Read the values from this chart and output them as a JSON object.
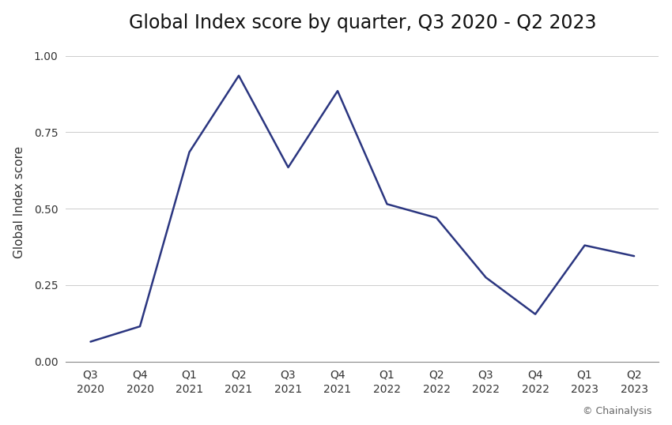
{
  "title": "Global Index score by quarter, Q3 2020 - Q2 2023",
  "ylabel": "Global Index score",
  "x_labels": [
    "Q3\n2020",
    "Q4\n2020",
    "Q1\n2021",
    "Q2\n2021",
    "Q3\n2021",
    "Q4\n2021",
    "Q1\n2022",
    "Q2\n2022",
    "Q3\n2022",
    "Q4\n2022",
    "Q1\n2023",
    "Q2\n2023"
  ],
  "values": [
    0.065,
    0.115,
    0.685,
    0.935,
    0.635,
    0.885,
    0.515,
    0.47,
    0.275,
    0.155,
    0.38,
    0.345
  ],
  "line_color": "#2b3680",
  "line_width": 1.8,
  "ylim": [
    0.0,
    1.04
  ],
  "yticks": [
    0.0,
    0.25,
    0.5,
    0.75,
    1.0
  ],
  "background_color": "#ffffff",
  "grid_color": "#cccccc",
  "title_fontsize": 17,
  "label_fontsize": 11,
  "tick_fontsize": 10,
  "source_text": "© Chainalysis",
  "source_fontsize": 9,
  "source_color": "#666666"
}
